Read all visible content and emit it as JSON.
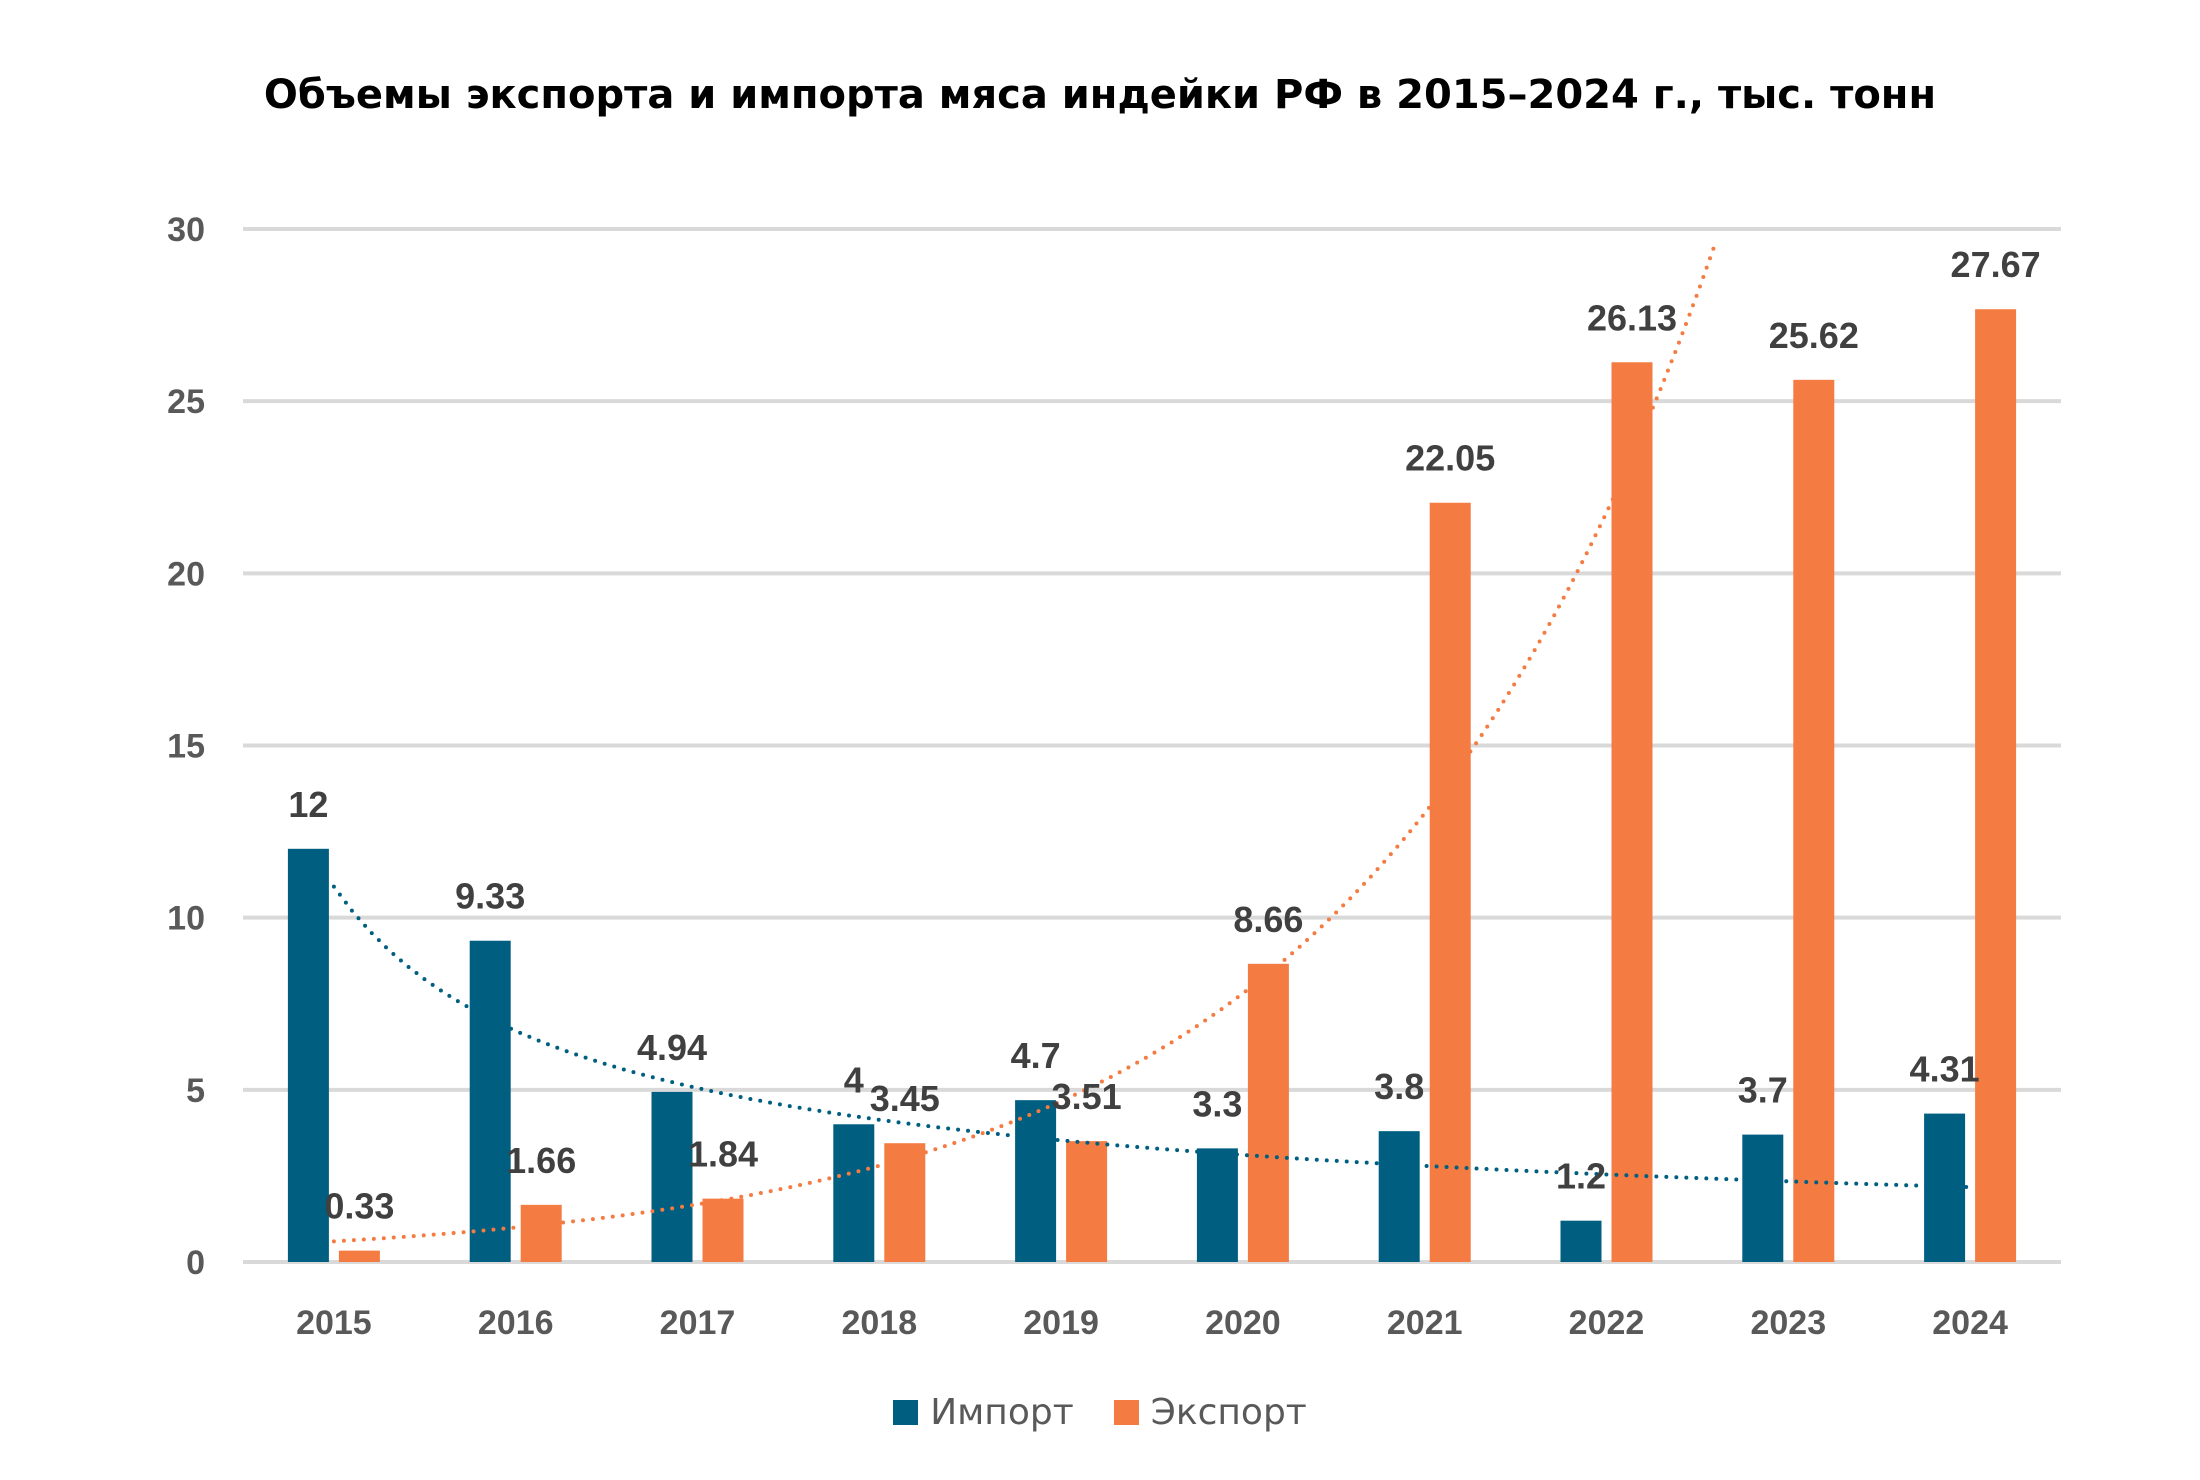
{
  "chart_data": {
    "type": "bar",
    "title": "Объемы экспорта и импорта мяса индейки РФ в 2015–2024  г., тыс. тонн",
    "xlabel": "",
    "ylabel": "",
    "ylim": [
      0,
      30
    ],
    "yticks": [
      0,
      5,
      10,
      15,
      20,
      25,
      30
    ],
    "grid": true,
    "legend_position": "bottom",
    "categories": [
      "2015",
      "2016",
      "2017",
      "2018",
      "2019",
      "2020",
      "2021",
      "2022",
      "2023",
      "2024"
    ],
    "series": [
      {
        "name": "Импорт",
        "color": "#005F80",
        "values": [
          12,
          9.33,
          4.94,
          4,
          4.7,
          3.3,
          3.8,
          1.2,
          3.7,
          4.31
        ],
        "labels": [
          "12",
          "9.33",
          "4.94",
          "4",
          "4.7",
          "3.3",
          "3.8",
          "1.2",
          "3.7",
          "4.31"
        ],
        "trendline": {
          "type": "power",
          "style": "dotted",
          "color": "#005F80",
          "approx_values": [
            10.9,
            8.3,
            6.8,
            5.7,
            4.9,
            4.2,
            3.6,
            3.1,
            2.6,
            2.2
          ]
        }
      },
      {
        "name": "Экспорт",
        "color": "#F47B42",
        "values": [
          0.33,
          1.66,
          1.84,
          3.45,
          3.51,
          8.66,
          22.05,
          26.13,
          25.62,
          27.67
        ],
        "labels": [
          "0.33",
          "1.66",
          "1.84",
          "3.45",
          "3.51",
          "8.66",
          "22.05",
          "26.13",
          "25.62",
          "27.67"
        ],
        "trendline": {
          "type": "exponential",
          "style": "dotted",
          "color": "#F47B42",
          "approx_values": [
            0.6,
            1.0,
            1.6,
            2.7,
            4.5,
            7.6,
            12.6,
            21.0,
            35.0
          ]
        }
      }
    ]
  },
  "legend": {
    "items": [
      {
        "label": "Импорт",
        "color": "#005F80"
      },
      {
        "label": "Экспорт",
        "color": "#F47B42"
      }
    ]
  }
}
